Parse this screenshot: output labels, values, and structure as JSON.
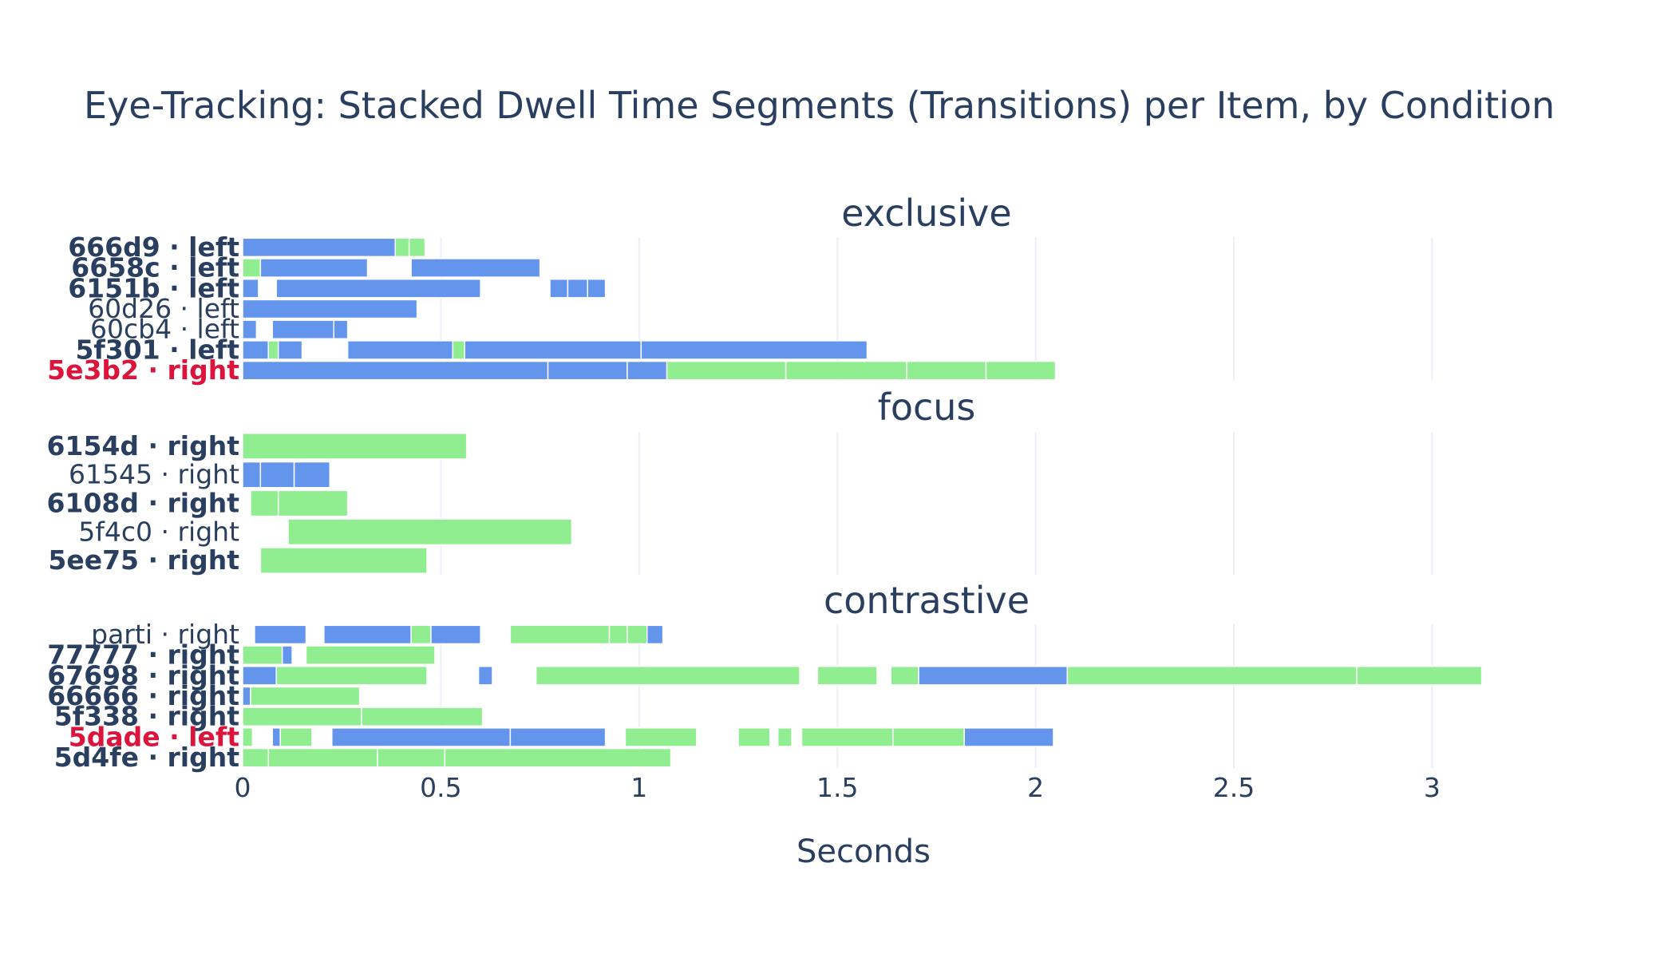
{
  "chart_data": {
    "type": "bar",
    "orientation": "horizontal",
    "stacked": true,
    "title": "Eye-Tracking: Stacked Dwell Time Segments (Transitions) per Item, by Condition",
    "xlabel": "Seconds",
    "xlim": [
      0,
      3.45
    ],
    "x_ticks": [
      0,
      0.5,
      1,
      1.5,
      2,
      2.5,
      3
    ],
    "x_tick_labels": [
      "0",
      "0.5",
      "1",
      "1.5",
      "2",
      "2.5",
      "3"
    ],
    "grid": true,
    "colors": {
      "blue": "#6495ed",
      "green": "#90ee90",
      "label": "#2a3f5f",
      "highlight": "#dc143c"
    },
    "panels": [
      {
        "name": "exclusive",
        "rows": [
          {
            "label": "666d9 · left",
            "bold": true,
            "highlight": false,
            "segments": [
              [
                0,
                0.385,
                "blue"
              ],
              [
                0.385,
                0.42,
                "green"
              ],
              [
                0.42,
                0.46,
                "green"
              ]
            ]
          },
          {
            "label": "6658c · left",
            "bold": true,
            "highlight": false,
            "segments": [
              [
                0,
                0.045,
                "green"
              ],
              [
                0.045,
                0.315,
                "blue"
              ],
              [
                0.425,
                0.75,
                "blue"
              ]
            ]
          },
          {
            "label": "6151b · left",
            "bold": true,
            "highlight": false,
            "segments": [
              [
                0,
                0.04,
                "blue"
              ],
              [
                0.085,
                0.6,
                "blue"
              ],
              [
                0.775,
                0.82,
                "blue"
              ],
              [
                0.82,
                0.87,
                "blue"
              ],
              [
                0.87,
                0.915,
                "blue"
              ]
            ]
          },
          {
            "label": "60d26 · left",
            "bold": false,
            "highlight": false,
            "segments": [
              [
                0,
                0.44,
                "blue"
              ]
            ]
          },
          {
            "label": "60cb4 · left",
            "bold": false,
            "highlight": false,
            "segments": [
              [
                0,
                0.035,
                "blue"
              ],
              [
                0.075,
                0.23,
                "blue"
              ],
              [
                0.23,
                0.265,
                "blue"
              ]
            ]
          },
          {
            "label": "5f301 · left",
            "bold": true,
            "highlight": false,
            "segments": [
              [
                0,
                0.065,
                "blue"
              ],
              [
                0.065,
                0.09,
                "green"
              ],
              [
                0.09,
                0.15,
                "blue"
              ],
              [
                0.265,
                0.53,
                "blue"
              ],
              [
                0.53,
                0.56,
                "green"
              ],
              [
                0.56,
                1.005,
                "blue"
              ],
              [
                1.005,
                1.575,
                "blue"
              ]
            ]
          },
          {
            "label": "5e3b2 · right",
            "bold": true,
            "highlight": true,
            "segments": [
              [
                0,
                0.77,
                "blue"
              ],
              [
                0.77,
                0.97,
                "blue"
              ],
              [
                0.97,
                1.07,
                "blue"
              ],
              [
                1.07,
                1.37,
                "green"
              ],
              [
                1.37,
                1.675,
                "green"
              ],
              [
                1.675,
                1.875,
                "green"
              ],
              [
                1.875,
                2.05,
                "green"
              ]
            ]
          }
        ]
      },
      {
        "name": "focus",
        "rows": [
          {
            "label": "6154d · right",
            "bold": true,
            "highlight": false,
            "segments": [
              [
                0,
                0.565,
                "green"
              ]
            ]
          },
          {
            "label": "61545 · right",
            "bold": false,
            "highlight": false,
            "segments": [
              [
                0,
                0.045,
                "blue"
              ],
              [
                0.045,
                0.13,
                "blue"
              ],
              [
                0.13,
                0.22,
                "blue"
              ]
            ]
          },
          {
            "label": "6108d · right",
            "bold": true,
            "highlight": false,
            "segments": [
              [
                0.02,
                0.09,
                "green"
              ],
              [
                0.09,
                0.265,
                "green"
              ]
            ]
          },
          {
            "label": "5f4c0 · right",
            "bold": false,
            "highlight": false,
            "segments": [
              [
                0.115,
                0.83,
                "green"
              ]
            ]
          },
          {
            "label": "5ee75 · right",
            "bold": true,
            "highlight": false,
            "segments": [
              [
                0.045,
                0.465,
                "green"
              ]
            ]
          }
        ]
      },
      {
        "name": "contrastive",
        "rows": [
          {
            "label": "parti · right",
            "bold": false,
            "highlight": false,
            "segments": [
              [
                0.03,
                0.16,
                "blue"
              ],
              [
                0.205,
                0.425,
                "blue"
              ],
              [
                0.425,
                0.475,
                "green"
              ],
              [
                0.475,
                0.6,
                "blue"
              ],
              [
                0.675,
                0.925,
                "green"
              ],
              [
                0.925,
                0.97,
                "green"
              ],
              [
                0.97,
                1.02,
                "green"
              ],
              [
                1.02,
                1.06,
                "blue"
              ]
            ]
          },
          {
            "label": "77777 · right",
            "bold": true,
            "highlight": false,
            "segments": [
              [
                0,
                0.1,
                "green"
              ],
              [
                0.1,
                0.125,
                "blue"
              ],
              [
                0.16,
                0.485,
                "green"
              ]
            ]
          },
          {
            "label": "67698 · right",
            "bold": true,
            "highlight": false,
            "segments": [
              [
                0,
                0.085,
                "blue"
              ],
              [
                0.085,
                0.465,
                "green"
              ],
              [
                0.595,
                0.63,
                "blue"
              ],
              [
                0.74,
                1.405,
                "green"
              ],
              [
                1.45,
                1.6,
                "green"
              ],
              [
                1.635,
                1.705,
                "green"
              ],
              [
                1.705,
                2.08,
                "blue"
              ],
              [
                2.08,
                2.81,
                "green"
              ],
              [
                2.81,
                3.125,
                "green"
              ]
            ]
          },
          {
            "label": "66666 · right",
            "bold": true,
            "highlight": false,
            "segments": [
              [
                0,
                0.02,
                "blue"
              ],
              [
                0.02,
                0.295,
                "green"
              ]
            ]
          },
          {
            "label": "5f338 · right",
            "bold": true,
            "highlight": false,
            "segments": [
              [
                0,
                0.3,
                "green"
              ],
              [
                0.3,
                0.605,
                "green"
              ]
            ]
          },
          {
            "label": "5dade · left",
            "bold": true,
            "highlight": true,
            "segments": [
              [
                0,
                0.025,
                "green"
              ],
              [
                0.075,
                0.095,
                "blue"
              ],
              [
                0.095,
                0.175,
                "green"
              ],
              [
                0.225,
                0.675,
                "blue"
              ],
              [
                0.675,
                0.915,
                "blue"
              ],
              [
                0.965,
                1.145,
                "green"
              ],
              [
                1.25,
                1.33,
                "green"
              ],
              [
                1.35,
                1.385,
                "green"
              ],
              [
                1.41,
                1.64,
                "green"
              ],
              [
                1.64,
                1.82,
                "green"
              ],
              [
                1.82,
                2.045,
                "blue"
              ]
            ]
          },
          {
            "label": "5d4fe · right",
            "bold": true,
            "highlight": false,
            "segments": [
              [
                0,
                0.065,
                "green"
              ],
              [
                0.065,
                0.34,
                "green"
              ],
              [
                0.34,
                0.51,
                "green"
              ],
              [
                0.51,
                1.08,
                "green"
              ]
            ]
          }
        ]
      }
    ]
  }
}
